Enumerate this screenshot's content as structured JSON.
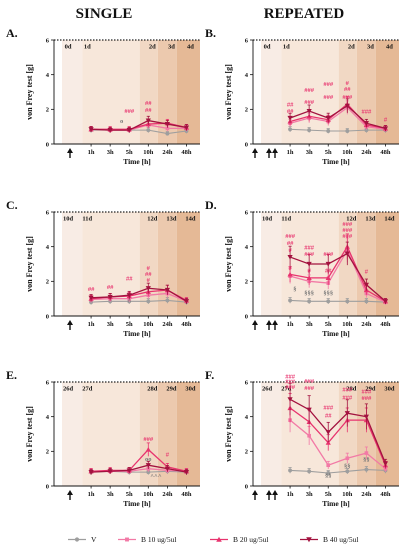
{
  "headers": {
    "left": "SINGLE",
    "right": "REPEATED"
  },
  "colors": {
    "V": "#9e9e9e",
    "B10": "#f27aa6",
    "B20": "#e8336e",
    "B40": "#a3123f",
    "annot_pink": "#e8336e",
    "annot_gray": "#777777",
    "shade": [
      "#f7e7da",
      "#f1d8c4",
      "#ecc9ae",
      "#e5b996"
    ]
  },
  "legend": [
    {
      "key": "V",
      "label": "V",
      "marker": "circle"
    },
    {
      "key": "B10",
      "label": "B 10 ug/5ul",
      "marker": "square"
    },
    {
      "key": "B20",
      "label": "B 20 ug/5ul",
      "marker": "triangle"
    },
    {
      "key": "B40",
      "label": "B 40 ug/5ul",
      "marker": "triangle-down"
    }
  ],
  "chart_data": [
    {
      "type": "line",
      "panel": "A.",
      "ylabel": "von Frey test [g]",
      "xlabel": "Time [h]",
      "ylim": [
        0,
        6
      ],
      "x": [
        "1h",
        "3h",
        "5h",
        "10h",
        "24h",
        "48h"
      ],
      "y_ticks": [
        0,
        2,
        4,
        6
      ],
      "day_labels": [
        {
          "label": "0d",
          "at": 0
        },
        {
          "label": "1d",
          "at": 1
        },
        {
          "label": "2d",
          "at": 4
        },
        {
          "label": "3d",
          "at": 5
        },
        {
          "label": "4d",
          "at": 6
        }
      ],
      "injections": 1,
      "series": [
        {
          "key": "V",
          "values": [
            0.8,
            0.8,
            0.8,
            0.8,
            0.6,
            0.75
          ]
        },
        {
          "key": "B10",
          "values": [
            0.85,
            0.8,
            0.8,
            1.1,
            0.9,
            0.9
          ]
        },
        {
          "key": "B20",
          "values": [
            0.85,
            0.85,
            0.85,
            1.15,
            1.2,
            0.95
          ]
        },
        {
          "key": "B40",
          "values": [
            0.85,
            0.8,
            0.8,
            1.35,
            1.15,
            0.95
          ]
        }
      ],
      "annotations": [
        {
          "at": 2.6,
          "value": 1.2,
          "text": "o",
          "color": "gray"
        },
        {
          "at": 3,
          "value": 1.8,
          "text": "###",
          "color": "pink"
        },
        {
          "at": 4,
          "value": 1.85,
          "text": "##",
          "color": "pink"
        },
        {
          "at": 4,
          "value": 2.25,
          "text": "##",
          "color": "pink"
        }
      ]
    },
    {
      "type": "line",
      "panel": "B.",
      "ylabel": "von Frey test [g]",
      "xlabel": "Time [h]",
      "ylim": [
        0,
        6
      ],
      "x": [
        "1h",
        "3h",
        "5h",
        "10h",
        "24h",
        "48h"
      ],
      "y_ticks": [
        0,
        2,
        4,
        6
      ],
      "day_labels": [
        {
          "label": "0d",
          "at": 0
        },
        {
          "label": "1d",
          "at": 1
        },
        {
          "label": "2d",
          "at": 4
        },
        {
          "label": "3d",
          "at": 5
        },
        {
          "label": "4d",
          "at": 6
        }
      ],
      "injections": 3,
      "series": [
        {
          "key": "V",
          "values": [
            0.85,
            0.8,
            0.75,
            0.75,
            0.8,
            0.8
          ]
        },
        {
          "key": "B10",
          "values": [
            1.2,
            1.5,
            1.3,
            2.1,
            1.0,
            0.85
          ]
        },
        {
          "key": "B20",
          "values": [
            1.3,
            1.6,
            1.4,
            2.3,
            1.1,
            0.9
          ]
        },
        {
          "key": "B40",
          "values": [
            1.5,
            1.9,
            1.5,
            2.2,
            1.2,
            0.9
          ]
        }
      ],
      "annotations": [
        {
          "at": 1,
          "value": 1.8,
          "text": "##",
          "color": "pink"
        },
        {
          "at": 1,
          "value": 2.15,
          "text": "##",
          "color": "pink"
        },
        {
          "at": 2,
          "value": 2.3,
          "text": "###",
          "color": "pink"
        },
        {
          "at": 2,
          "value": 3.0,
          "text": "###",
          "color": "pink"
        },
        {
          "at": 3,
          "value": 2.6,
          "text": "###",
          "color": "pink"
        },
        {
          "at": 3,
          "value": 3.35,
          "text": "###",
          "color": "pink"
        },
        {
          "at": 4,
          "value": 2.6,
          "text": "###",
          "color": "pink"
        },
        {
          "at": 4,
          "value": 3.05,
          "text": "##",
          "color": "pink"
        },
        {
          "at": 4,
          "value": 3.4,
          "text": "#",
          "color": "pink"
        },
        {
          "at": 5,
          "value": 1.75,
          "text": "###",
          "color": "pink"
        },
        {
          "at": 6,
          "value": 1.3,
          "text": "#",
          "color": "pink"
        }
      ]
    },
    {
      "type": "line",
      "panel": "C.",
      "ylabel": "von Frey test [g]",
      "xlabel": "Time [h]",
      "ylim": [
        0,
        6
      ],
      "x": [
        "1h",
        "3h",
        "5h",
        "10h",
        "24h",
        "48h"
      ],
      "y_ticks": [
        0,
        2,
        4,
        6
      ],
      "day_labels": [
        {
          "label": "10d",
          "at": 0
        },
        {
          "label": "11d",
          "at": 1
        },
        {
          "label": "12d",
          "at": 4
        },
        {
          "label": "13d",
          "at": 5
        },
        {
          "label": "14d",
          "at": 6
        }
      ],
      "injections": 1,
      "series": [
        {
          "key": "V",
          "values": [
            0.8,
            0.85,
            0.85,
            0.85,
            0.9,
            0.8
          ]
        },
        {
          "key": "B10",
          "values": [
            0.95,
            1.0,
            1.0,
            1.2,
            1.3,
            0.85
          ]
        },
        {
          "key": "B20",
          "values": [
            1.0,
            1.1,
            1.15,
            1.4,
            1.5,
            0.9
          ]
        },
        {
          "key": "B40",
          "values": [
            1.05,
            1.1,
            1.2,
            1.6,
            1.5,
            0.85
          ]
        }
      ],
      "annotations": [
        {
          "at": 1,
          "value": 1.45,
          "text": "##",
          "color": "pink"
        },
        {
          "at": 2,
          "value": 1.55,
          "text": "##",
          "color": "pink"
        },
        {
          "at": 3,
          "value": 2.05,
          "text": "##",
          "color": "pink"
        },
        {
          "at": 4,
          "value": 1.95,
          "text": "#",
          "color": "pink"
        },
        {
          "at": 4,
          "value": 2.3,
          "text": "##",
          "color": "pink"
        },
        {
          "at": 4,
          "value": 2.65,
          "text": "#",
          "color": "pink"
        },
        {
          "at": 3,
          "value": 0.75,
          "text": "^",
          "color": "gray"
        }
      ]
    },
    {
      "type": "line",
      "panel": "D.",
      "ylabel": "von Frey test [g]",
      "xlabel": "Time [h]",
      "ylim": [
        0,
        6
      ],
      "x": [
        "1h",
        "3h",
        "5h",
        "10h",
        "24h",
        "48h"
      ],
      "y_ticks": [
        0,
        2,
        4,
        6
      ],
      "day_labels": [
        {
          "label": "10d",
          "at": 0
        },
        {
          "label": "11d",
          "at": 1
        },
        {
          "label": "12d",
          "at": 4
        },
        {
          "label": "13d",
          "at": 5
        },
        {
          "label": "14d",
          "at": 6
        }
      ],
      "injections": 3,
      "series": [
        {
          "key": "V",
          "values": [
            0.9,
            0.85,
            0.85,
            0.85,
            0.85,
            0.8
          ]
        },
        {
          "key": "B10",
          "values": [
            2.3,
            2.0,
            1.9,
            3.8,
            1.3,
            0.8
          ]
        },
        {
          "key": "B20",
          "values": [
            2.4,
            2.2,
            2.2,
            4.0,
            1.5,
            0.85
          ]
        },
        {
          "key": "B40",
          "values": [
            3.4,
            3.0,
            3.0,
            3.6,
            1.8,
            0.85
          ]
        }
      ],
      "annotations": [
        {
          "at": 1,
          "value": 3.7,
          "text": "#",
          "color": "pink"
        },
        {
          "at": 1,
          "value": 4.1,
          "text": "##",
          "color": "pink"
        },
        {
          "at": 1,
          "value": 4.5,
          "text": "###",
          "color": "pink"
        },
        {
          "at": 1,
          "value": 2.65,
          "text": "#",
          "color": "pink"
        },
        {
          "at": 1.25,
          "value": 1.45,
          "text": "§",
          "color": "gray"
        },
        {
          "at": 2,
          "value": 3.45,
          "text": "###",
          "color": "pink"
        },
        {
          "at": 2,
          "value": 3.85,
          "text": "###",
          "color": "pink"
        },
        {
          "at": 2,
          "value": 2.5,
          "text": "#",
          "color": "pink"
        },
        {
          "at": 2,
          "value": 1.2,
          "text": "§§§",
          "color": "gray"
        },
        {
          "at": 3,
          "value": 3.45,
          "text": "###",
          "color": "pink"
        },
        {
          "at": 3,
          "value": 2.5,
          "text": "##",
          "color": "pink"
        },
        {
          "at": 3,
          "value": 1.2,
          "text": "§§§",
          "color": "gray"
        },
        {
          "at": 4,
          "value": 4.5,
          "text": "###",
          "color": "pink"
        },
        {
          "at": 4,
          "value": 4.85,
          "text": "###",
          "color": "pink"
        },
        {
          "at": 4,
          "value": 5.2,
          "text": "###",
          "color": "pink"
        },
        {
          "at": 5,
          "value": 2.45,
          "text": "#",
          "color": "pink"
        }
      ]
    },
    {
      "type": "line",
      "panel": "E.",
      "ylabel": "von Frey test [g]",
      "xlabel": "Time [h]",
      "ylim": [
        0,
        6
      ],
      "x": [
        "1h",
        "3h",
        "5h",
        "10h",
        "24h",
        "48h"
      ],
      "y_ticks": [
        0,
        2,
        4,
        6
      ],
      "day_labels": [
        {
          "label": "26d",
          "at": 0
        },
        {
          "label": "27d",
          "at": 1
        },
        {
          "label": "28d",
          "at": 4
        },
        {
          "label": "29d",
          "at": 5
        },
        {
          "label": "30d",
          "at": 6
        }
      ],
      "injections": 1,
      "series": [
        {
          "key": "V",
          "values": [
            0.8,
            0.85,
            0.8,
            0.8,
            0.85,
            0.8
          ]
        },
        {
          "key": "B10",
          "values": [
            0.85,
            0.85,
            0.85,
            1.0,
            0.9,
            0.85
          ]
        },
        {
          "key": "B20",
          "values": [
            0.85,
            0.9,
            0.9,
            2.1,
            1.1,
            0.85
          ]
        },
        {
          "key": "B40",
          "values": [
            0.8,
            0.85,
            0.9,
            1.2,
            1.0,
            0.8
          ]
        }
      ],
      "annotations": [
        {
          "at": 4,
          "value": 2.6,
          "text": "###",
          "color": "pink"
        },
        {
          "at": 5,
          "value": 1.7,
          "text": "#",
          "color": "pink"
        },
        {
          "at": 4,
          "value": 1.45,
          "text": "oo",
          "color": "gray"
        },
        {
          "at": 4.4,
          "value": 0.45,
          "text": "^^^",
          "color": "gray"
        }
      ]
    },
    {
      "type": "line",
      "panel": "F.",
      "ylabel": "von Frey test [g]",
      "xlabel": "Time [h]",
      "ylim": [
        0,
        6
      ],
      "x": [
        "1h",
        "3h",
        "5h",
        "10h",
        "24h",
        "48h"
      ],
      "y_ticks": [
        0,
        2,
        4,
        6
      ],
      "day_labels": [
        {
          "label": "26d",
          "at": 0
        },
        {
          "label": "27d",
          "at": 1
        },
        {
          "label": "28d",
          "at": 4
        },
        {
          "label": "29d",
          "at": 5
        },
        {
          "label": "30d",
          "at": 6
        }
      ],
      "injections": 3,
      "series": [
        {
          "key": "V",
          "values": [
            0.9,
            0.85,
            0.75,
            0.85,
            0.95,
            0.9
          ]
        },
        {
          "key": "B10",
          "values": [
            3.8,
            2.9,
            1.2,
            1.6,
            1.9,
            1.0
          ]
        },
        {
          "key": "B20",
          "values": [
            4.5,
            3.7,
            2.5,
            3.8,
            3.8,
            1.2
          ]
        },
        {
          "key": "B40",
          "values": [
            5.0,
            4.4,
            3.1,
            4.2,
            4.0,
            1.3
          ]
        }
      ],
      "annotations": [
        {
          "at": 1,
          "value": 5.6,
          "text": "###",
          "color": "pink"
        },
        {
          "at": 1,
          "value": 5.9,
          "text": "###",
          "color": "pink"
        },
        {
          "at": 1,
          "value": 6.2,
          "text": "###",
          "color": "pink"
        },
        {
          "at": 2,
          "value": 5.55,
          "text": "###",
          "color": "pink"
        },
        {
          "at": 2,
          "value": 5.95,
          "text": "###",
          "color": "pink"
        },
        {
          "at": 3,
          "value": 3.95,
          "text": "##",
          "color": "pink"
        },
        {
          "at": 3,
          "value": 4.4,
          "text": "###",
          "color": "pink"
        },
        {
          "at": 4,
          "value": 5.0,
          "text": "###",
          "color": "pink"
        },
        {
          "at": 4,
          "value": 5.45,
          "text": "###",
          "color": "pink"
        },
        {
          "at": 5,
          "value": 4.95,
          "text": "###",
          "color": "pink"
        },
        {
          "at": 5,
          "value": 5.35,
          "text": "###",
          "color": "pink"
        },
        {
          "at": 3,
          "value": 0.5,
          "text": "§§",
          "color": "gray"
        },
        {
          "at": 4,
          "value": 1.05,
          "text": "§§",
          "color": "gray"
        },
        {
          "at": 5,
          "value": 1.4,
          "text": "§§",
          "color": "gray"
        }
      ]
    }
  ]
}
